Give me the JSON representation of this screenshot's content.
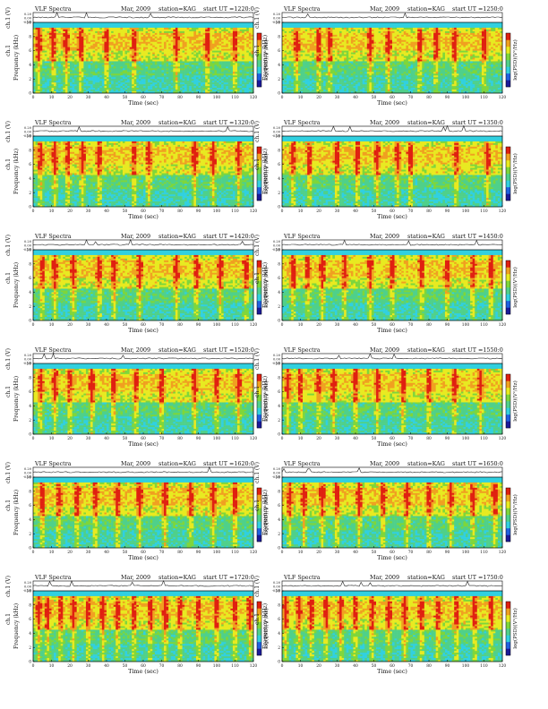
{
  "colors": {
    "colormap": [
      "#1a1a9a",
      "#2060e0",
      "#30d0e0",
      "#4fd08a",
      "#7ed63b",
      "#e8ea20",
      "#f0a020",
      "#e02010"
    ],
    "trace": "#222222",
    "axis": "#000000",
    "background": "#ffffff"
  },
  "chart_data": [
    {
      "type": "heatmap",
      "title": "VLF Spectra",
      "month": "Mar, 2009",
      "station": "station=KAG",
      "start_ut": "start UT =1220:0",
      "ch_label": "ch.1 (V)",
      "ch_ticks": [
        "0.20",
        "0.00",
        "-0.20"
      ],
      "ch_ylim": [
        -0.2,
        0.2
      ],
      "ylabel": "Frequency (kHz)",
      "y_ticks": [
        "0",
        "2",
        "4",
        "6",
        "8",
        "10"
      ],
      "ylim": [
        0,
        10
      ],
      "xlabel": "Time (sec)",
      "x_ticks": [
        "0",
        "10",
        "20",
        "30",
        "40",
        "50",
        "60",
        "70",
        "80",
        "90",
        "100",
        "110",
        "120"
      ],
      "xlim": [
        0,
        120
      ],
      "colorbar_label": "log(PSD)(V²/Hz)",
      "intense_bands_sec": [
        3,
        11,
        18,
        26,
        40,
        55,
        78,
        95,
        110
      ]
    },
    {
      "type": "heatmap",
      "title": "VLF Spectra",
      "month": "Mar, 2009",
      "station": "station=KAG",
      "start_ut": "start UT =1250:0",
      "ch_label": "ch.1 (V)",
      "ch_ticks": [
        "0.20",
        "0.00",
        "-0.20"
      ],
      "ch_ylim": [
        -0.2,
        0.2
      ],
      "ylabel": "Frequency (kHz)",
      "y_ticks": [
        "0",
        "2",
        "4",
        "6",
        "8",
        "10"
      ],
      "ylim": [
        0,
        10
      ],
      "xlabel": "Time (sec)",
      "x_ticks": [
        "0",
        "10",
        "20",
        "30",
        "40",
        "50",
        "60",
        "70",
        "80",
        "90",
        "100",
        "110",
        "120"
      ],
      "xlim": [
        0,
        120
      ],
      "colorbar_label": "log(PSD)(V²/Hz)",
      "intense_bands_sec": [
        8,
        20,
        26,
        48,
        58,
        75,
        84,
        94,
        110
      ]
    },
    {
      "type": "heatmap",
      "title": "VLF Spectra",
      "month": "Mar, 2009",
      "station": "station=KAG",
      "start_ut": "start UT =1320:0",
      "ch_label": "ch.1 (V)",
      "ch_ticks": [
        "0.20",
        "0.00",
        "-0.20"
      ],
      "ch_ylim": [
        -0.2,
        0.2
      ],
      "ylabel": "Frequency (kHz)",
      "y_ticks": [
        "0",
        "2",
        "4",
        "6",
        "8",
        "10"
      ],
      "ylim": [
        0,
        10
      ],
      "xlabel": "Time (sec)",
      "x_ticks": [
        "0",
        "10",
        "20",
        "30",
        "40",
        "50",
        "60",
        "70",
        "80",
        "90",
        "100",
        "110",
        "120"
      ],
      "xlim": [
        0,
        120
      ],
      "colorbar_label": "log(PSD)(V²/Hz)",
      "intense_bands_sec": [
        4,
        12,
        19,
        27,
        36,
        55,
        63,
        88,
        98,
        112
      ]
    },
    {
      "type": "heatmap",
      "title": "VLF Spectra",
      "month": "Mar, 2009",
      "station": "station=KAG",
      "start_ut": "start UT =1350:0",
      "ch_label": "ch.1 (V)",
      "ch_ticks": [
        "0.20",
        "0.00",
        "-0.20"
      ],
      "ch_ylim": [
        -0.2,
        0.2
      ],
      "ylabel": "Frequency (kHz)",
      "y_ticks": [
        "0",
        "2",
        "4",
        "6",
        "8",
        "10"
      ],
      "ylim": [
        0,
        10
      ],
      "xlabel": "Time (sec)",
      "x_ticks": [
        "0",
        "10",
        "20",
        "30",
        "40",
        "50",
        "60",
        "70",
        "80",
        "90",
        "100",
        "110",
        "120"
      ],
      "xlim": [
        0,
        120
      ],
      "colorbar_label": "log(PSD)(V²/Hz)",
      "intense_bands_sec": [
        6,
        15,
        30,
        41,
        52,
        63,
        70,
        95,
        112
      ]
    },
    {
      "type": "heatmap",
      "title": "VLF Spectra",
      "month": "Mar, 2009",
      "station": "station=KAG",
      "start_ut": "start UT =1420:0",
      "ch_label": "ch.1 (V)",
      "ch_ticks": [
        "0.20",
        "0.00",
        "-0.20"
      ],
      "ch_ylim": [
        -0.2,
        0.2
      ],
      "ylabel": "Frequency (kHz)",
      "y_ticks": [
        "0",
        "2",
        "4",
        "6",
        "8",
        "10"
      ],
      "ylim": [
        0,
        10
      ],
      "xlabel": "Time (sec)",
      "x_ticks": [
        "0",
        "10",
        "20",
        "30",
        "40",
        "50",
        "60",
        "70",
        "80",
        "90",
        "100",
        "110",
        "120"
      ],
      "xlim": [
        0,
        120
      ],
      "colorbar_label": "log(PSD)(V²/Hz)",
      "intense_bands_sec": [
        5,
        12,
        22,
        36,
        44,
        58,
        78,
        89,
        102,
        116
      ]
    },
    {
      "type": "heatmap",
      "title": "VLF Spectra",
      "month": "Mar, 2009",
      "station": "station=KAG",
      "start_ut": "start UT =1450:0",
      "ch_label": "ch.1 (V)",
      "ch_ticks": [
        "0.20",
        "0.00",
        "-0.20"
      ],
      "ch_ylim": [
        -0.2,
        0.2
      ],
      "ylabel": "Frequency (kHz)",
      "y_ticks": [
        "0",
        "2",
        "4",
        "6",
        "8",
        "10"
      ],
      "ylim": [
        0,
        10
      ],
      "xlabel": "Time (sec)",
      "x_ticks": [
        "0",
        "10",
        "20",
        "30",
        "40",
        "50",
        "60",
        "70",
        "80",
        "90",
        "100",
        "110",
        "120"
      ],
      "xlim": [
        0,
        120
      ],
      "colorbar_label": "log(PSD)(V²/Hz)",
      "intense_bands_sec": [
        6,
        14,
        22,
        34,
        48,
        60,
        76,
        90,
        104,
        114
      ]
    },
    {
      "type": "heatmap",
      "title": "VLF Spectra",
      "month": "Mar, 2009",
      "station": "station=KAG",
      "start_ut": "start UT =1520:0",
      "ch_label": "ch.1 (V)",
      "ch_ticks": [
        "0.20",
        "0.00",
        "-0.20"
      ],
      "ch_ylim": [
        -0.2,
        0.2
      ],
      "ylabel": "Frequency (kHz)",
      "y_ticks": [
        "0",
        "2",
        "4",
        "6",
        "8",
        "10"
      ],
      "ylim": [
        0,
        10
      ],
      "xlabel": "Time (sec)",
      "x_ticks": [
        "0",
        "10",
        "20",
        "30",
        "40",
        "50",
        "60",
        "70",
        "80",
        "90",
        "100",
        "110",
        "120"
      ],
      "xlim": [
        0,
        120
      ],
      "colorbar_label": "log(PSD)(V²/Hz)",
      "intense_bands_sec": [
        4,
        12,
        20,
        32,
        44,
        56,
        70,
        88,
        100,
        112
      ]
    },
    {
      "type": "heatmap",
      "title": "VLF Spectra",
      "month": "Mar, 2009",
      "station": "station=KAG",
      "start_ut": "start UT =1550:0",
      "ch_label": "ch.1 (V)",
      "ch_ticks": [
        "0.20",
        "0.00",
        "-0.20"
      ],
      "ch_ylim": [
        -0.2,
        0.2
      ],
      "ylabel": "Frequency (kHz)",
      "y_ticks": [
        "0",
        "2",
        "4",
        "6",
        "8",
        "10"
      ],
      "ylim": [
        0,
        10
      ],
      "xlabel": "Time (sec)",
      "x_ticks": [
        "0",
        "10",
        "20",
        "30",
        "40",
        "50",
        "60",
        "70",
        "80",
        "90",
        "100",
        "110",
        "120"
      ],
      "xlim": [
        0,
        120
      ],
      "colorbar_label": "log(PSD)(V²/Hz)",
      "intense_bands_sec": [
        3,
        10,
        20,
        28,
        40,
        52,
        66,
        80,
        94,
        108
      ]
    },
    {
      "type": "heatmap",
      "title": "VLF Spectra",
      "month": "Mar, 2009",
      "station": "station=KAG",
      "start_ut": "start UT =1620:0",
      "ch_label": "ch.1 (V)",
      "ch_ticks": [
        "0.20",
        "0.00",
        "-0.20"
      ],
      "ch_ylim": [
        -0.2,
        0.2
      ],
      "ylabel": "Frequency (kHz)",
      "y_ticks": [
        "0",
        "2",
        "4",
        "6",
        "8",
        "10"
      ],
      "ylim": [
        0,
        10
      ],
      "xlabel": "Time (sec)",
      "x_ticks": [
        "0",
        "10",
        "20",
        "30",
        "40",
        "50",
        "60",
        "70",
        "80",
        "90",
        "100",
        "110",
        "120"
      ],
      "xlim": [
        0,
        120
      ],
      "colorbar_label": "log(PSD)(V²/Hz)",
      "intense_bands_sec": [
        5,
        14,
        24,
        34,
        46,
        58,
        72,
        86,
        98,
        110
      ]
    },
    {
      "type": "heatmap",
      "title": "VLF Spectra",
      "month": "Mar, 2009",
      "station": "station=KAG",
      "start_ut": "start UT =1650:0",
      "ch_label": "ch.1 (V)",
      "ch_ticks": [
        "0.20",
        "0.00",
        "-0.20"
      ],
      "ch_ylim": [
        -0.2,
        0.2
      ],
      "ylabel": "Frequency (kHz)",
      "y_ticks": [
        "0",
        "2",
        "4",
        "6",
        "8",
        "10"
      ],
      "ylim": [
        0,
        10
      ],
      "xlabel": "Time (sec)",
      "x_ticks": [
        "0",
        "10",
        "20",
        "30",
        "40",
        "50",
        "60",
        "70",
        "80",
        "90",
        "100",
        "110",
        "120"
      ],
      "xlim": [
        0,
        120
      ],
      "colorbar_label": "log(PSD)(V²/Hz)",
      "intense_bands_sec": [
        4,
        12,
        22,
        30,
        42,
        55,
        68,
        80,
        92,
        104,
        116
      ]
    },
    {
      "type": "heatmap",
      "title": "VLF Spectra",
      "month": "Mar, 2009",
      "station": "station=KAG",
      "start_ut": "start UT =1720:0",
      "ch_label": "ch.1 (V)",
      "ch_ticks": [
        "0.20",
        "0.00",
        "-0.20"
      ],
      "ch_ylim": [
        -0.2,
        0.2
      ],
      "ylabel": "Frequency (kHz)",
      "y_ticks": [
        "0",
        "2",
        "4",
        "6",
        "8",
        "10"
      ],
      "ylim": [
        0,
        10
      ],
      "xlabel": "Time (sec)",
      "x_ticks": [
        "0",
        "10",
        "20",
        "30",
        "40",
        "50",
        "60",
        "70",
        "80",
        "90",
        "100",
        "110",
        "120"
      ],
      "xlim": [
        0,
        120
      ],
      "colorbar_label": "log(PSD)(V²/Hz)",
      "intense_bands_sec": [
        3,
        8,
        15,
        22,
        30,
        38,
        46,
        55,
        64,
        72,
        80,
        90,
        100,
        110,
        118
      ]
    },
    {
      "type": "heatmap",
      "title": "VLF Spectra",
      "month": "Mar, 2009",
      "station": "station=KAG",
      "start_ut": "start UT =1750:0",
      "ch_label": "ch.1 (V)",
      "ch_ticks": [
        "0.20",
        "0.00",
        "-0.20"
      ],
      "ch_ylim": [
        -0.2,
        0.2
      ],
      "ylabel": "Frequency (kHz)",
      "y_ticks": [
        "0",
        "2",
        "4",
        "6",
        "8",
        "10"
      ],
      "ylim": [
        0,
        10
      ],
      "xlabel": "Time (sec)",
      "x_ticks": [
        "0",
        "10",
        "20",
        "30",
        "40",
        "50",
        "60",
        "70",
        "80",
        "90",
        "100",
        "110",
        "120"
      ],
      "xlim": [
        0,
        120
      ],
      "colorbar_label": "log(PSD)(V²/Hz)",
      "intense_bands_sec": [
        2,
        9,
        16,
        24,
        32,
        40,
        49,
        58,
        67,
        76,
        85,
        95,
        105,
        114
      ]
    }
  ]
}
